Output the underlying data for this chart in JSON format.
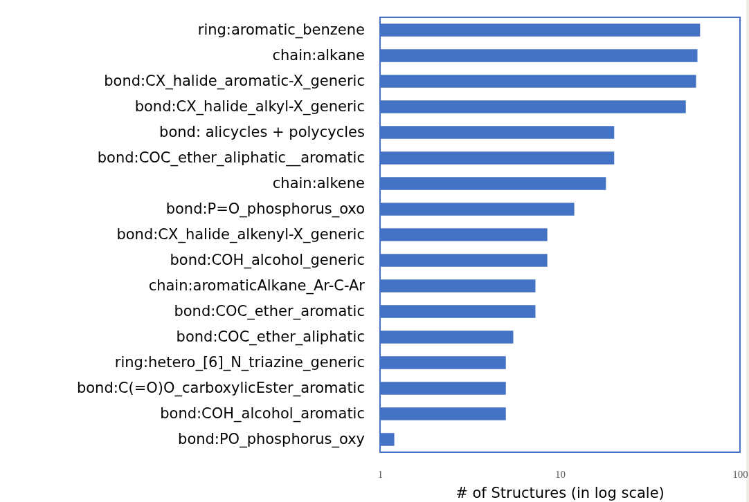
{
  "chart_data": {
    "type": "bar",
    "orientation": "horizontal",
    "log": "x",
    "xlabel": "# of Structures (in log scale)",
    "categories": [
      "ring:aromatic_benzene",
      "chain:alkane",
      "bond:CX_halide_aromatic-X_generic",
      "bond:CX_halide_alkyl-X_generic",
      "bond: alicycles + polycycles",
      "bond:COC_ether_aliphatic__aromatic",
      "chain:alkene",
      "bond:P=O_phosphorus_oxo",
      "bond:CX_halide_alkenyl-X_generic",
      "bond:COH_alcohol_generic",
      "chain:aromaticAlkane_Ar-C-Ar",
      "bond:COC_ether_aromatic",
      "bond:COC_ether_aliphatic",
      "ring:hetero_[6]_N_triazine_generic",
      "bond:C(=O)O_carboxylicEster_aromatic",
      "bond:COH_alcohol_aromatic",
      "bond:PO_phosphorus_oxy"
    ],
    "values": [
      60,
      58,
      57,
      50,
      20,
      20,
      18,
      12,
      8.5,
      8.5,
      7.3,
      7.3,
      5.5,
      5,
      5,
      5,
      1.2
    ],
    "color": "#4472c4",
    "xlim": [
      1,
      100
    ],
    "xticks": [
      1,
      10,
      100
    ],
    "grid": false
  }
}
